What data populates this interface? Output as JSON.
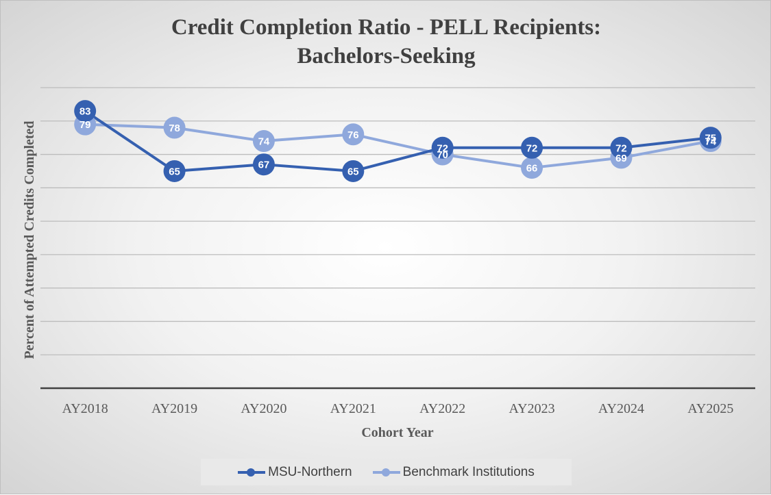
{
  "chart_data": {
    "type": "line",
    "title_lines": [
      "Credit Completion Ratio - PELL Recipients:",
      "Bachelors-Seeking"
    ],
    "xlabel": "Cohort Year",
    "ylabel": "Percent of Attempted Credits Completed",
    "categories": [
      "AY2018",
      "AY2019",
      "AY2020",
      "AY2021",
      "AY2022",
      "AY2023",
      "AY2024",
      "AY2025"
    ],
    "ylim": [
      0,
      90
    ],
    "grid": true,
    "legend_position": "bottom",
    "series": [
      {
        "name": "MSU-Northern",
        "values": [
          83,
          65,
          67,
          65,
          72,
          72,
          72,
          75
        ],
        "color": "#3560b0"
      },
      {
        "name": "Benchmark Institutions",
        "values": [
          79,
          78,
          74,
          76,
          70,
          66,
          69,
          74
        ],
        "color": "#8fa8dc"
      }
    ]
  }
}
